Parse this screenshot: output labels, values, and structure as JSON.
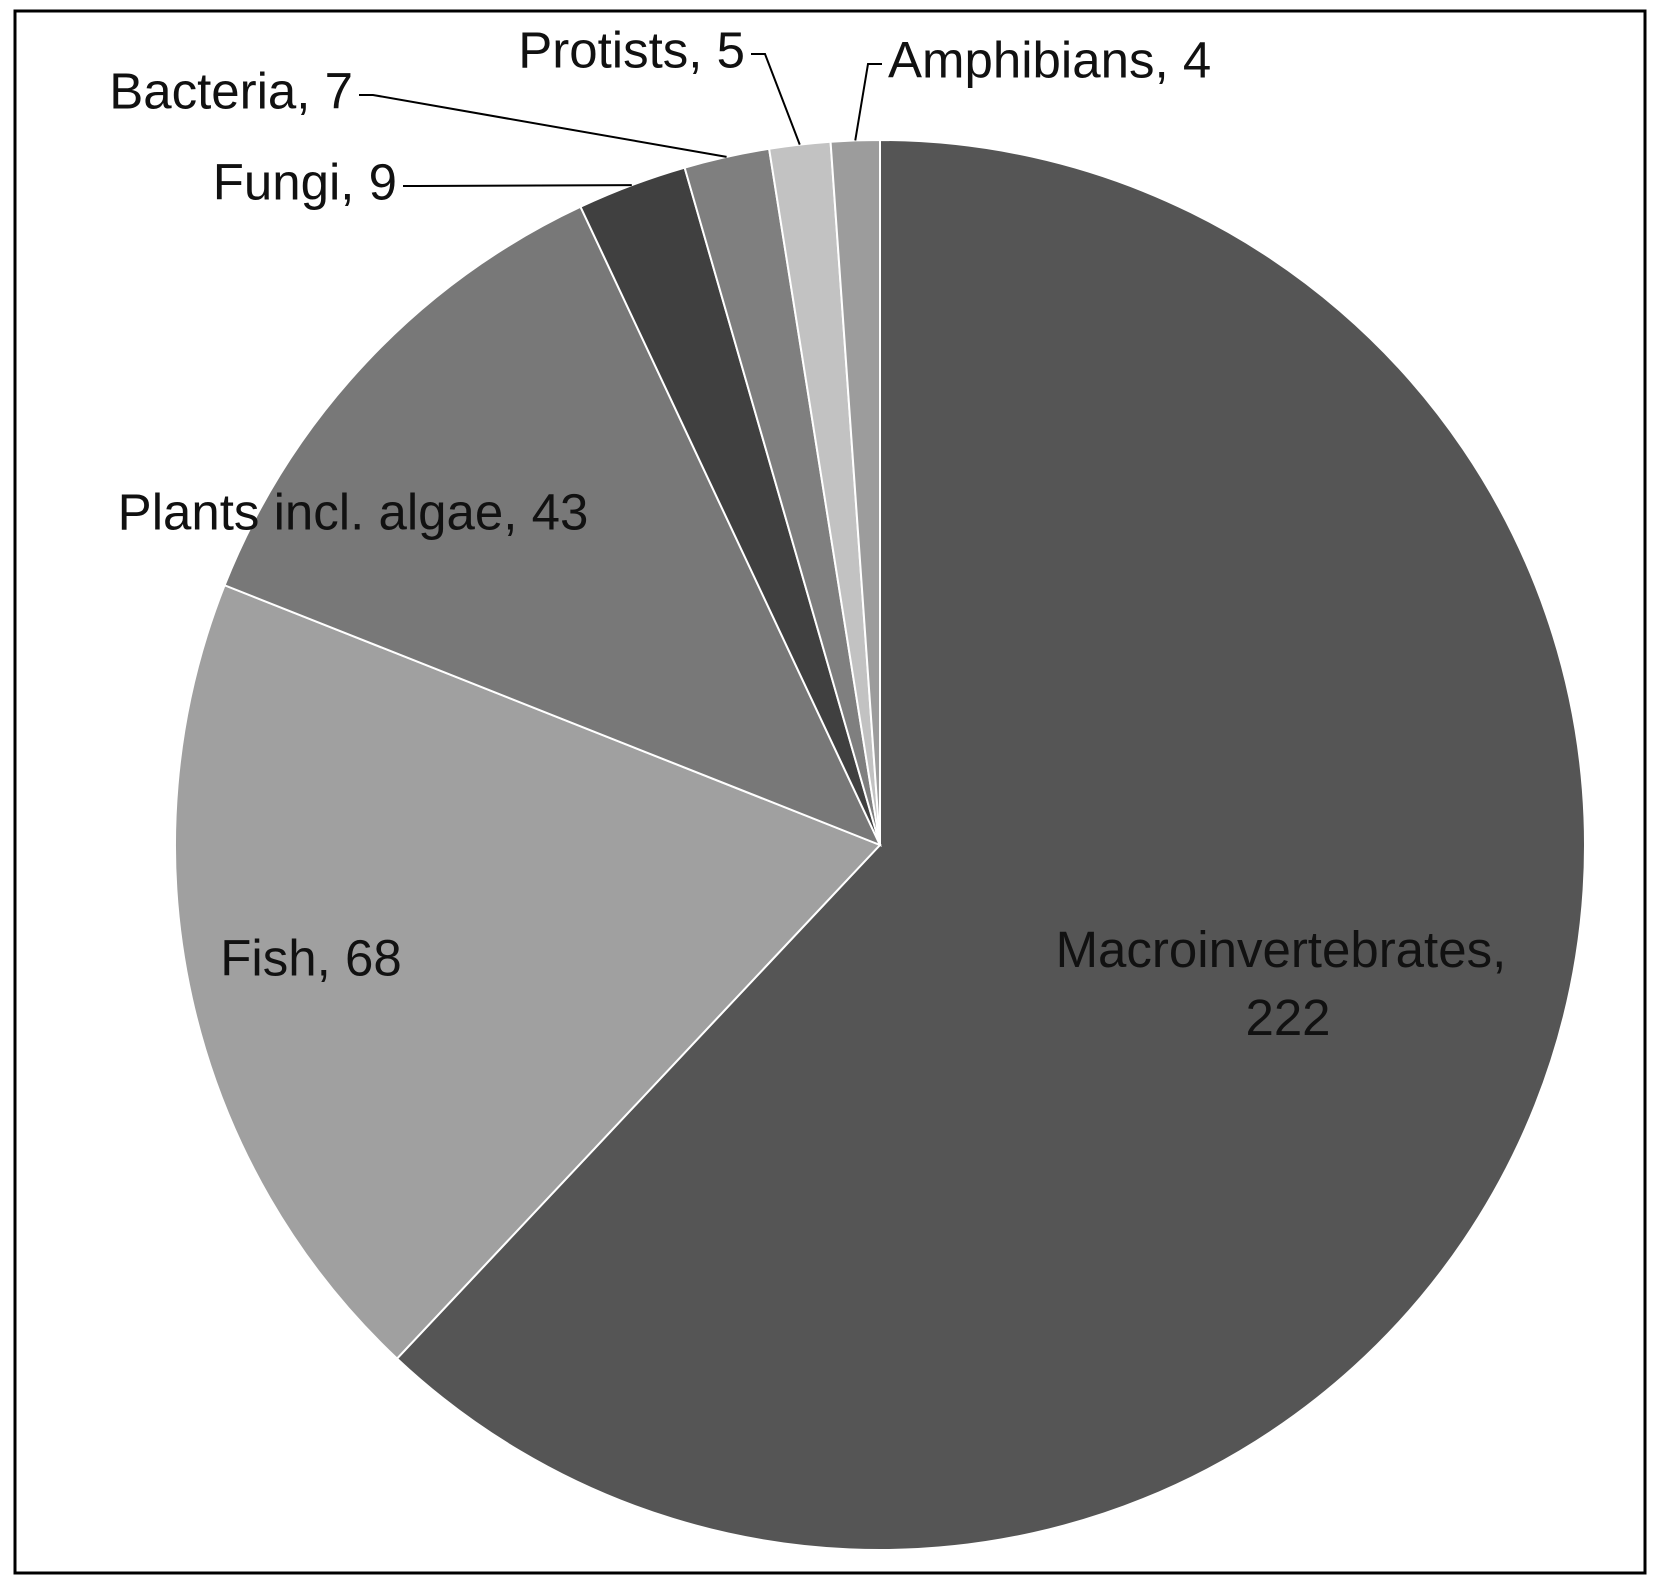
{
  "chart_data": {
    "type": "pie",
    "values": [
      222,
      68,
      43,
      9,
      7,
      5,
      4
    ],
    "value_labels": [
      "Macroinvertebrates, 222",
      "Fish, 68",
      "Plants incl. algae, 43",
      "Fungi, 9",
      "Bacteria, 7",
      "Protists, 5",
      "Amphibians, 4"
    ],
    "colors": [
      "#555555",
      "#a0a0a0",
      "#787878",
      "#404040",
      "#7f7f7f",
      "#c2c2c2",
      "#9c9c9c"
    ]
  }
}
